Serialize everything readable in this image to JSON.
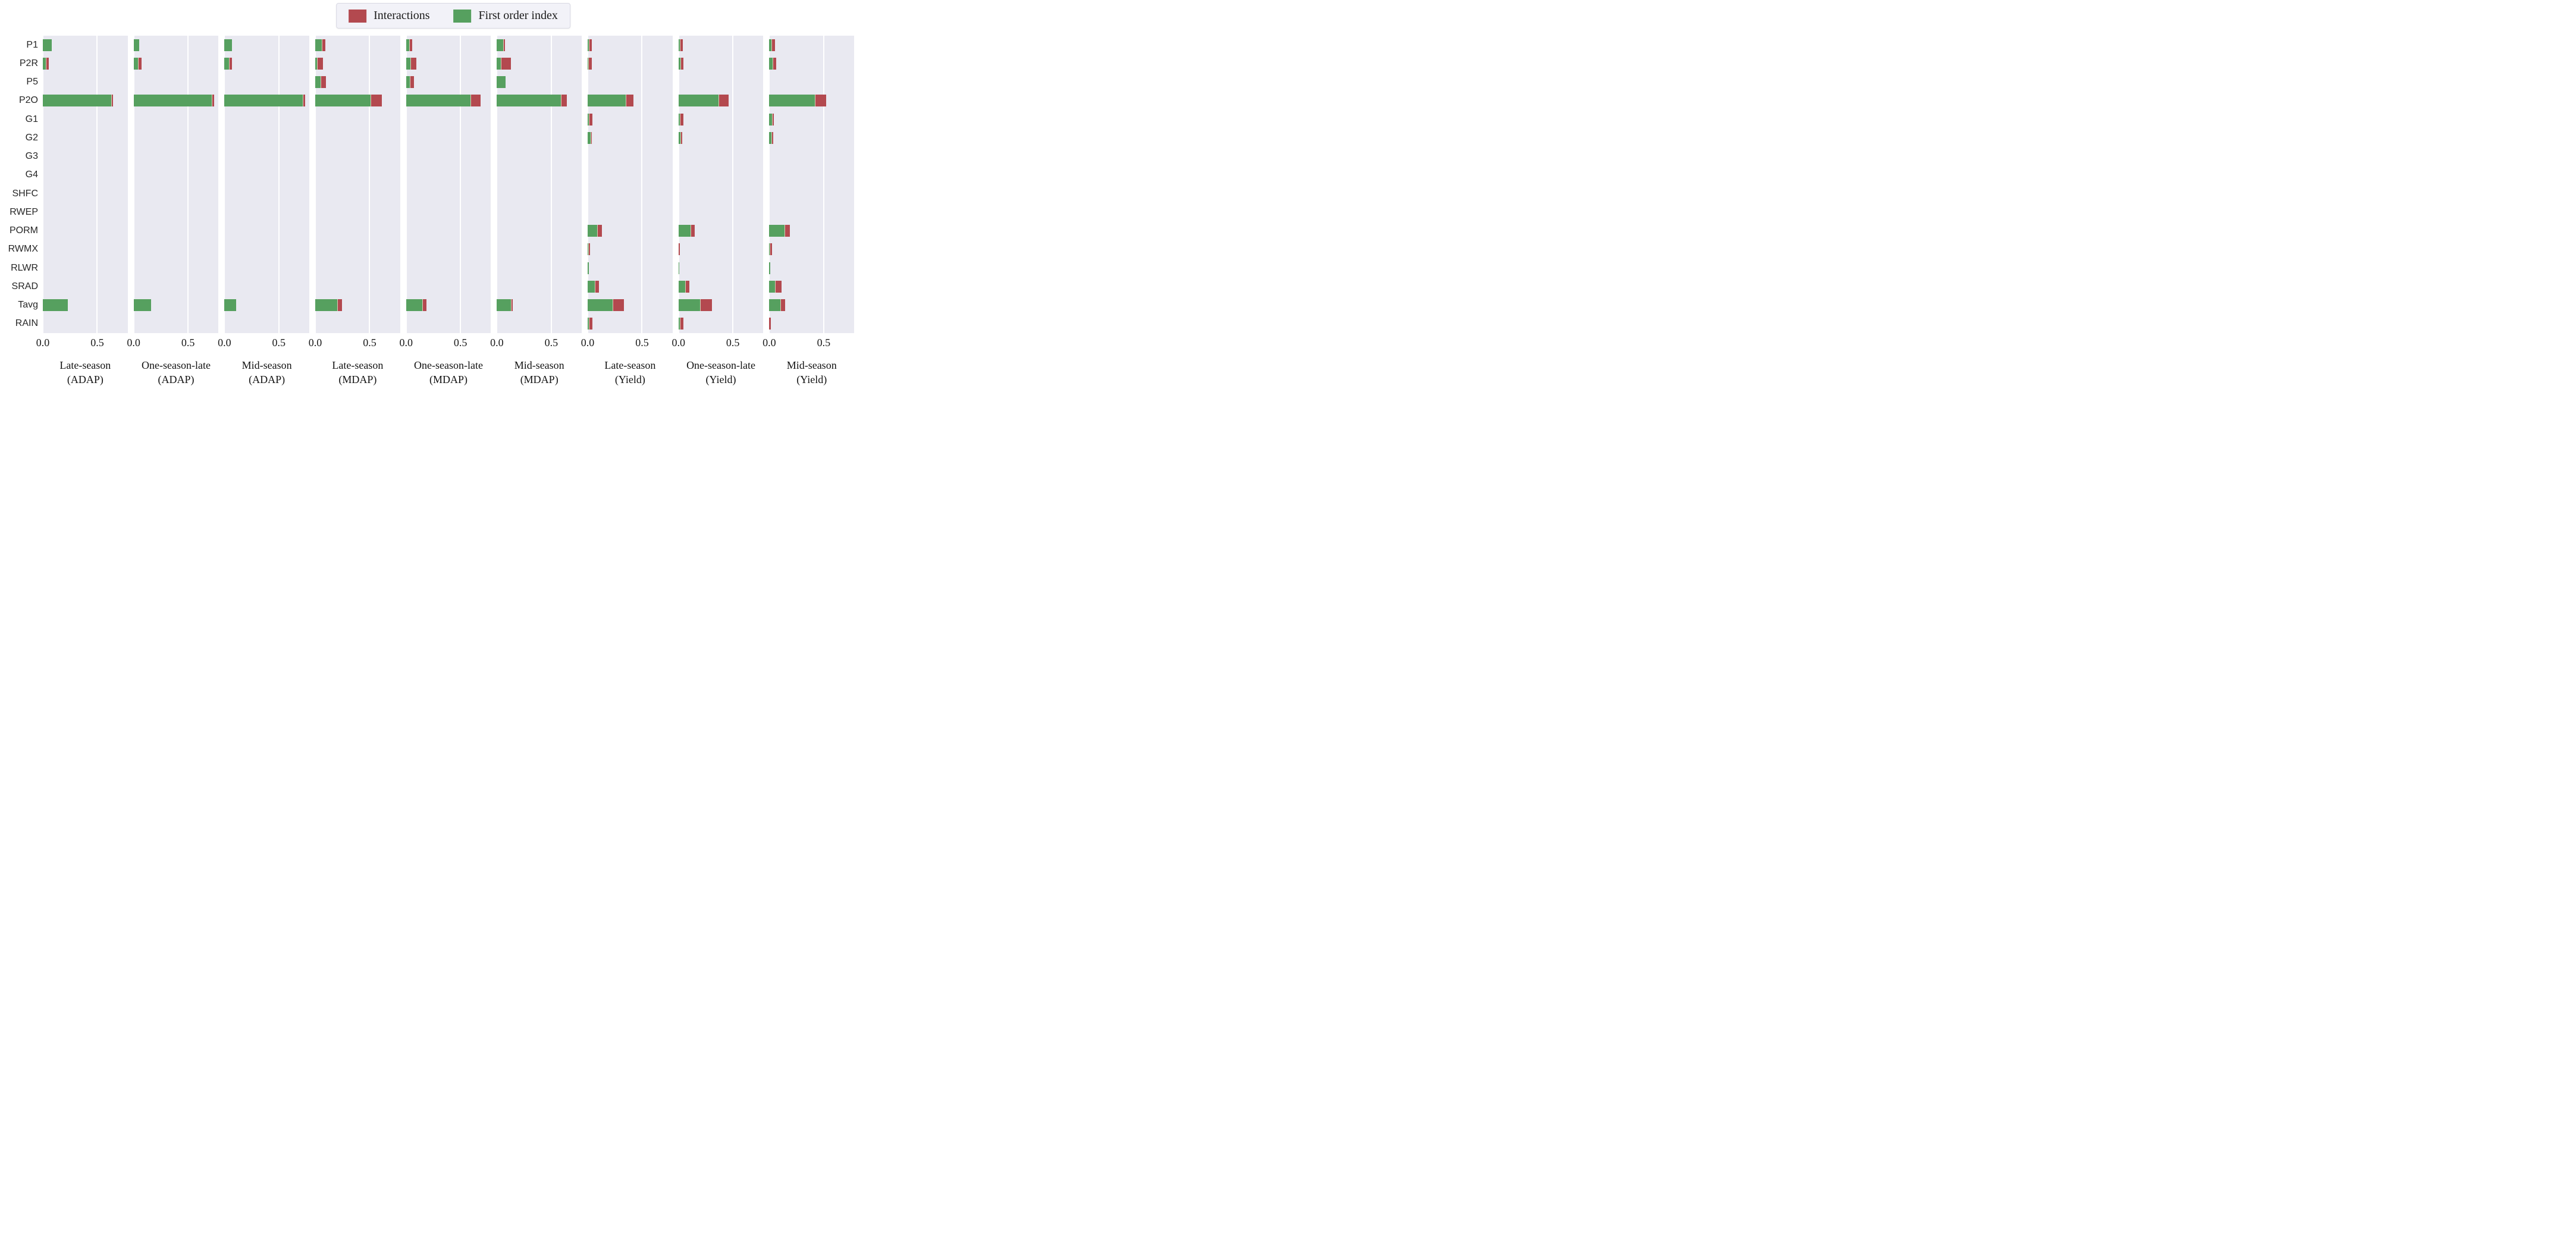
{
  "legend": {
    "items": [
      {
        "label": "Interactions",
        "color": "#b3494f"
      },
      {
        "label": "First order index",
        "color": "#56a05f"
      }
    ]
  },
  "chart_data": {
    "type": "bar",
    "orientation": "horizontal",
    "stacked": true,
    "grid": true,
    "legend_position": "top-center",
    "series_names": [
      "First order index",
      "Interactions"
    ],
    "colors": {
      "first_order": "#56a05f",
      "interactions": "#b3494f",
      "panel_bg": "#e9e9f1",
      "gridline": "#ffffff"
    },
    "categories": [
      "P1",
      "P2R",
      "P5",
      "P2O",
      "G1",
      "G2",
      "G3",
      "G4",
      "SHFC",
      "RWEP",
      "PORM",
      "RWMX",
      "RLWR",
      "SRAD",
      "Tavg",
      "RAIN"
    ],
    "xlim": [
      0,
      0.78
    ],
    "xticks": [
      0.0,
      0.5
    ],
    "xtick_labels": [
      "0.0",
      "0.5"
    ],
    "panels": [
      {
        "title_line1": "Late-season",
        "title_line2": "(ADAP)",
        "first_order": [
          0.08,
          0.03,
          0,
          0.63,
          0,
          0,
          0,
          0,
          0,
          0,
          0,
          0,
          0,
          0,
          0.23,
          0
        ],
        "interactions": [
          0,
          0.02,
          0,
          0.01,
          0,
          0,
          0,
          0,
          0,
          0,
          0,
          0,
          0,
          0,
          0,
          0
        ]
      },
      {
        "title_line1": "One-season-late",
        "title_line2": "(ADAP)",
        "first_order": [
          0.05,
          0.04,
          0,
          0.72,
          0,
          0,
          0,
          0,
          0,
          0,
          0,
          0,
          0,
          0,
          0.16,
          0
        ],
        "interactions": [
          0,
          0.03,
          0,
          0.015,
          0,
          0,
          0,
          0,
          0,
          0,
          0,
          0,
          0,
          0,
          0,
          0
        ]
      },
      {
        "title_line1": "Mid-season",
        "title_line2": "(ADAP)",
        "first_order": [
          0.07,
          0.04,
          0,
          0.72,
          0,
          0,
          0,
          0,
          0,
          0,
          0,
          0,
          0,
          0,
          0.11,
          0
        ],
        "interactions": [
          0,
          0.025,
          0,
          0.015,
          0,
          0,
          0,
          0,
          0,
          0,
          0,
          0,
          0,
          0,
          0,
          0
        ]
      },
      {
        "title_line1": "Late-season",
        "title_line2": "(MDAP)",
        "first_order": [
          0.06,
          0.015,
          0.05,
          0.51,
          0,
          0,
          0,
          0,
          0,
          0,
          0,
          0,
          0,
          0,
          0.2,
          0
        ],
        "interactions": [
          0.03,
          0.05,
          0.045,
          0.095,
          0,
          0,
          0,
          0,
          0,
          0,
          0,
          0,
          0,
          0,
          0.04,
          0
        ]
      },
      {
        "title_line1": "One-season-late",
        "title_line2": "(MDAP)",
        "first_order": [
          0.03,
          0.04,
          0.035,
          0.59,
          0,
          0,
          0,
          0,
          0,
          0,
          0,
          0,
          0,
          0,
          0.15,
          0
        ],
        "interactions": [
          0.02,
          0.05,
          0.035,
          0.09,
          0,
          0,
          0,
          0,
          0,
          0,
          0,
          0,
          0,
          0,
          0.03,
          0
        ]
      },
      {
        "title_line1": "Mid-season",
        "title_line2": "(MDAP)",
        "first_order": [
          0.06,
          0.035,
          0.08,
          0.59,
          0,
          0,
          0,
          0,
          0,
          0,
          0,
          0,
          0,
          0,
          0.13,
          0
        ],
        "interactions": [
          0.01,
          0.09,
          0,
          0.05,
          0,
          0,
          0,
          0,
          0,
          0,
          0,
          0,
          0,
          0,
          0.01,
          0
        ]
      },
      {
        "title_line1": "Late-season",
        "title_line2": "(Yield)",
        "first_order": [
          0.01,
          0.005,
          0,
          0.35,
          0.01,
          0.025,
          0,
          0,
          0,
          0,
          0.09,
          0.005,
          0.01,
          0.065,
          0.23,
          0.01
        ],
        "interactions": [
          0.025,
          0.03,
          0,
          0.065,
          0.03,
          0.01,
          0,
          0,
          0,
          0,
          0.035,
          0.01,
          0,
          0.035,
          0.1,
          0.03
        ]
      },
      {
        "title_line1": "One-season-late",
        "title_line2": "(Yield)",
        "first_order": [
          0.01,
          0.02,
          0,
          0.37,
          0.01,
          0.02,
          0,
          0,
          0,
          0,
          0.11,
          0,
          0.005,
          0.06,
          0.2,
          0.01
        ],
        "interactions": [
          0.025,
          0.02,
          0,
          0.085,
          0.03,
          0.01,
          0,
          0,
          0,
          0,
          0.035,
          0.012,
          0,
          0.035,
          0.1,
          0.03
        ]
      },
      {
        "title_line1": "Mid-season",
        "title_line2": "(Yield)",
        "first_order": [
          0.02,
          0.03,
          0,
          0.42,
          0.025,
          0.02,
          0,
          0,
          0,
          0,
          0.14,
          0.005,
          0.01,
          0.05,
          0.1,
          0
        ],
        "interactions": [
          0.025,
          0.03,
          0,
          0.1,
          0.01,
          0.01,
          0,
          0,
          0,
          0,
          0.045,
          0.015,
          0,
          0.06,
          0.04,
          0.015
        ]
      }
    ]
  }
}
